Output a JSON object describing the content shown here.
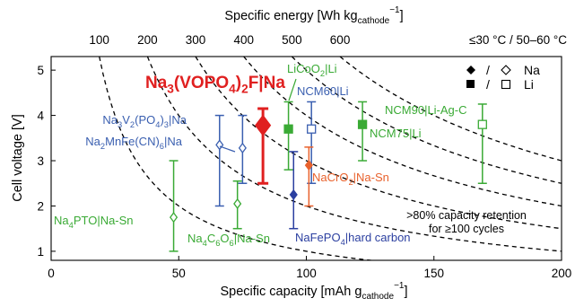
{
  "chart_data": {
    "type": "scatter",
    "xlabel": "Specific capacity [mAh g",
    "xlabel_sub": "cathode",
    "xlabel_sup": "−1",
    "xlabel_end": "]",
    "ylabel": "Cell voltage [V]",
    "top_axis_label": "Specific energy [Wh kg",
    "top_axis_label_sub": "cathode",
    "top_axis_label_sup": "−1",
    "top_axis_label_end": "]",
    "xlim": [
      0,
      200
    ],
    "ylim": [
      0.8,
      5.3
    ],
    "x_ticks": [
      "0",
      "50",
      "100",
      "150",
      "200"
    ],
    "y_ticks": [
      "1",
      "2",
      "3",
      "4",
      "5"
    ],
    "energy_contours": [
      {
        "label": "100",
        "value": 100
      },
      {
        "label": "200",
        "value": 200
      },
      {
        "label": "300",
        "value": 300
      },
      {
        "label": "400",
        "value": 400
      },
      {
        "label": "500",
        "value": 500
      },
      {
        "label": "600",
        "value": 600
      }
    ],
    "temperature_note": "≤30 °C / 50–60 °C",
    "retention_note": [
      ">80% capacity retention",
      "for ≥100 cycles"
    ],
    "legend": {
      "sep": "/",
      "na": "Na",
      "li": "Li"
    },
    "colors": {
      "green": "#3aaa35",
      "blue": "#3a5fb0",
      "red": "#e02020",
      "orange": "#e8612c",
      "black": "#000000"
    },
    "series": [
      {
        "name": "Na3(VOPO4)2F|Na",
        "label_parts": [
          "Na",
          "3",
          "(VOPO",
          "4",
          ")",
          "2",
          "F|Na"
        ],
        "x": 83,
        "y": 3.78,
        "ymin": 2.5,
        "ymax": 4.15,
        "color": "#e02020",
        "marker": "filled-diamond",
        "bold": true
      },
      {
        "name": "LiCoO2|Li",
        "label_parts": [
          "LiCoO",
          "2",
          "|Li"
        ],
        "x": 93,
        "y": 3.7,
        "ymin": 2.8,
        "ymax": 4.3,
        "color": "#3aaa35",
        "marker": "filled-square"
      },
      {
        "name": "NCM60|Li",
        "label_parts": [
          "NCM60|Li"
        ],
        "x": 102,
        "y": 3.7,
        "ymin": 2.5,
        "ymax": 4.3,
        "color": "#3a5fb0",
        "marker": "open-square"
      },
      {
        "name": "NCM75|Li",
        "label_parts": [
          "NCM75|Li"
        ],
        "x": 122,
        "y": 3.8,
        "ymin": 3.0,
        "ymax": 4.3,
        "color": "#3aaa35",
        "marker": "filled-square"
      },
      {
        "name": "NCM90|Li-Ag-C",
        "label_parts": [
          "NCM90|Li-Ag-C"
        ],
        "x": 169,
        "y": 3.8,
        "ymin": 2.5,
        "ymax": 4.25,
        "color": "#3aaa35",
        "marker": "open-square"
      },
      {
        "name": "Na3V2(PO4)3|Na",
        "label_parts": [
          "Na",
          "3",
          "V",
          "2",
          "(PO",
          "4",
          ")",
          "3",
          "|Na"
        ],
        "x": 75,
        "y": 3.28,
        "ymin": 2.5,
        "ymax": 4.0,
        "color": "#3a5fb0",
        "marker": "open-diamond"
      },
      {
        "name": "Na2MnFe(CN)6|Na",
        "label_parts": [
          "Na",
          "2",
          "MnFe(CN)",
          "6",
          "|Na"
        ],
        "x": 66,
        "y": 3.35,
        "ymin": 2.0,
        "ymax": 4.0,
        "color": "#3a5fb0",
        "marker": "open-diamond"
      },
      {
        "name": "NaCrO2|Na-Sn",
        "label_parts": [
          "NaCrO",
          "2",
          "|Na-Sn"
        ],
        "x": 101,
        "y": 2.9,
        "ymin": 2.0,
        "ymax": 3.3,
        "color": "#e8612c",
        "marker": "filled-diamond"
      },
      {
        "name": "NaFePO4|hard carbon",
        "label_parts": [
          "NaFePO",
          "4",
          "|hard carbon"
        ],
        "x": 95,
        "y": 2.25,
        "ymin": 1.5,
        "ymax": 3.2,
        "color": "#2b3fa0",
        "marker": "filled-diamond"
      },
      {
        "name": "Na4C6O6|Na-Sn",
        "label_parts": [
          "Na",
          "4",
          "C",
          "6",
          "O",
          "6",
          "|Na-Sn"
        ],
        "x": 73,
        "y": 2.05,
        "ymin": 1.5,
        "ymax": 2.55,
        "color": "#3aaa35",
        "marker": "open-diamond"
      },
      {
        "name": "Na4PTO|Na-Sn",
        "label_parts": [
          "Na",
          "4",
          "PTO|Na-Sn"
        ],
        "x": 48,
        "y": 1.75,
        "ymin": 1.0,
        "ymax": 3.0,
        "color": "#3aaa35",
        "marker": "open-diamond"
      }
    ]
  }
}
